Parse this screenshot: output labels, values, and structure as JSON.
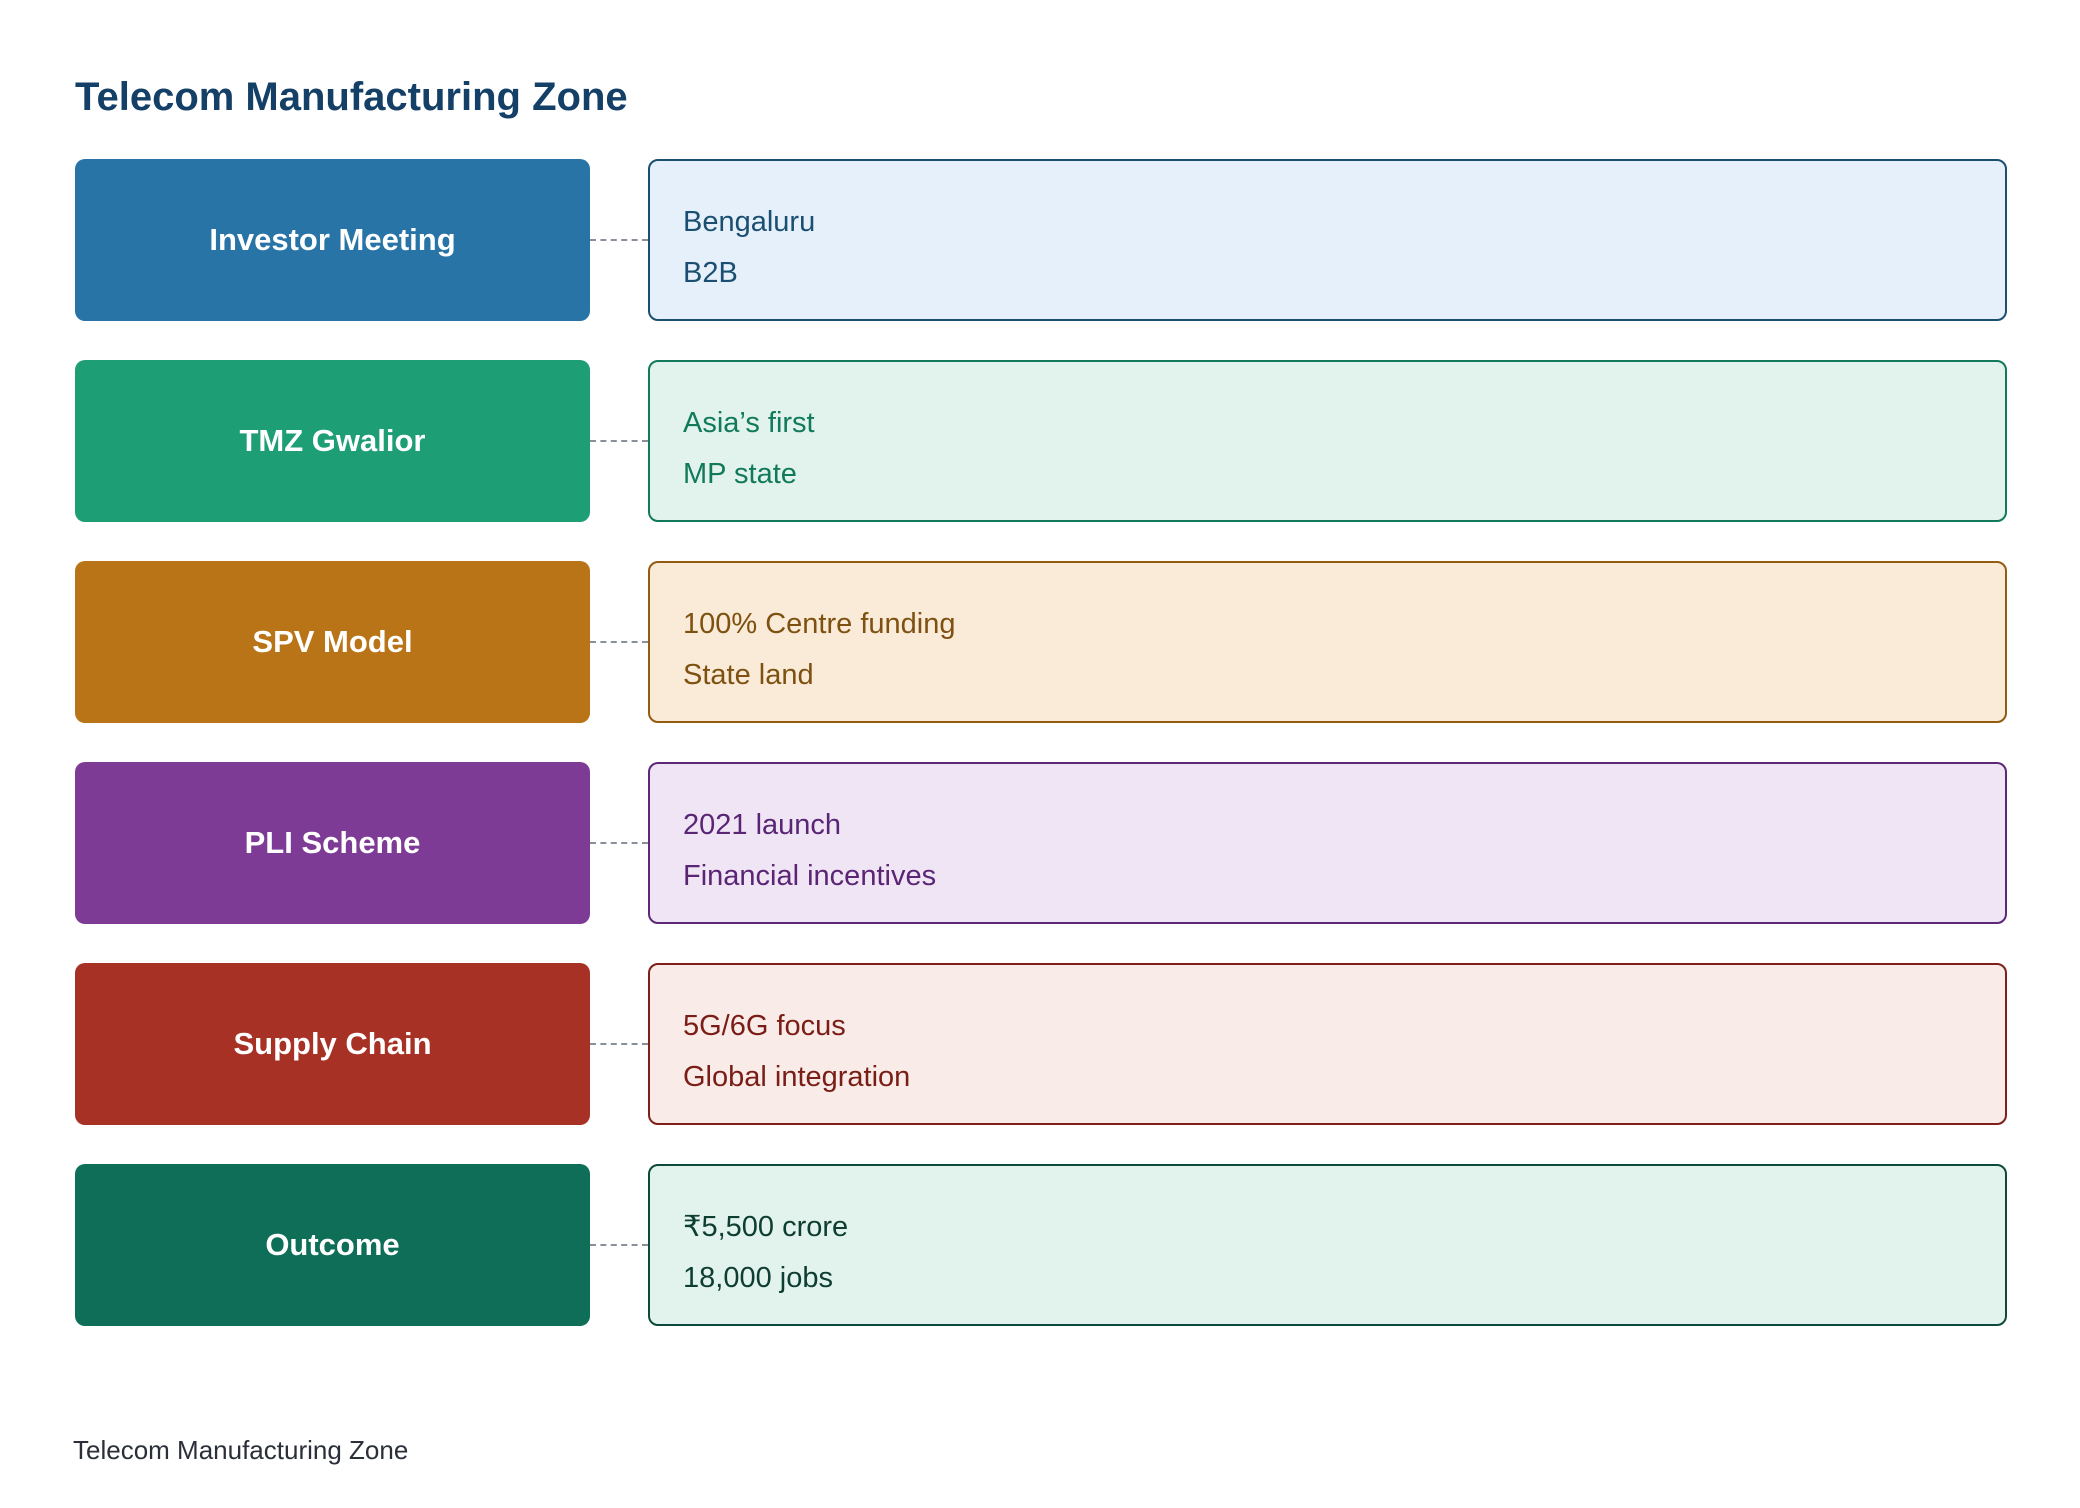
{
  "title": "Telecom Manufacturing Zone",
  "footer": "Telecom Manufacturing Zone",
  "rows": [
    {
      "label": "Investor Meeting",
      "details": [
        "Bengaluru",
        "B2B"
      ],
      "colors": {
        "label_bg": "#2874a6",
        "detail_bg": "#e5f0fa",
        "detail_border": "#1b4f72",
        "detail_text": "#1b4f72"
      }
    },
    {
      "label": "TMZ Gwalior",
      "details": [
        "Asia’s first",
        "MP state"
      ],
      "colors": {
        "label_bg": "#1e9e74",
        "detail_bg": "#e1f3ec",
        "detail_border": "#117a5a",
        "detail_text": "#117a5a"
      }
    },
    {
      "label": "SPV Model",
      "details": [
        "100% Centre funding",
        "State land"
      ],
      "colors": {
        "label_bg": "#b97417",
        "detail_bg": "#faebd9",
        "detail_border": "#935c10",
        "detail_text": "#7e5110"
      }
    },
    {
      "label": "PLI Scheme",
      "details": [
        "2021 launch",
        "Financial incentives"
      ],
      "colors": {
        "label_bg": "#7d3b96",
        "detail_bg": "#efe5f5",
        "detail_border": "#5e2878",
        "detail_text": "#5a2574"
      }
    },
    {
      "label": "Supply Chain",
      "details": [
        "5G/6G focus",
        "Global integration"
      ],
      "colors": {
        "label_bg": "#a83126",
        "detail_bg": "#f9ebe7",
        "detail_border": "#7e1f19",
        "detail_text": "#7a1d16"
      }
    },
    {
      "label": "Outcome",
      "details": [
        "₹5,500 crore",
        "18,000 jobs"
      ],
      "colors": {
        "label_bg": "#0f6e58",
        "detail_bg": "#e1f3ec",
        "detail_border": "#0e4a3c",
        "detail_text": "#0e3d32"
      }
    }
  ]
}
